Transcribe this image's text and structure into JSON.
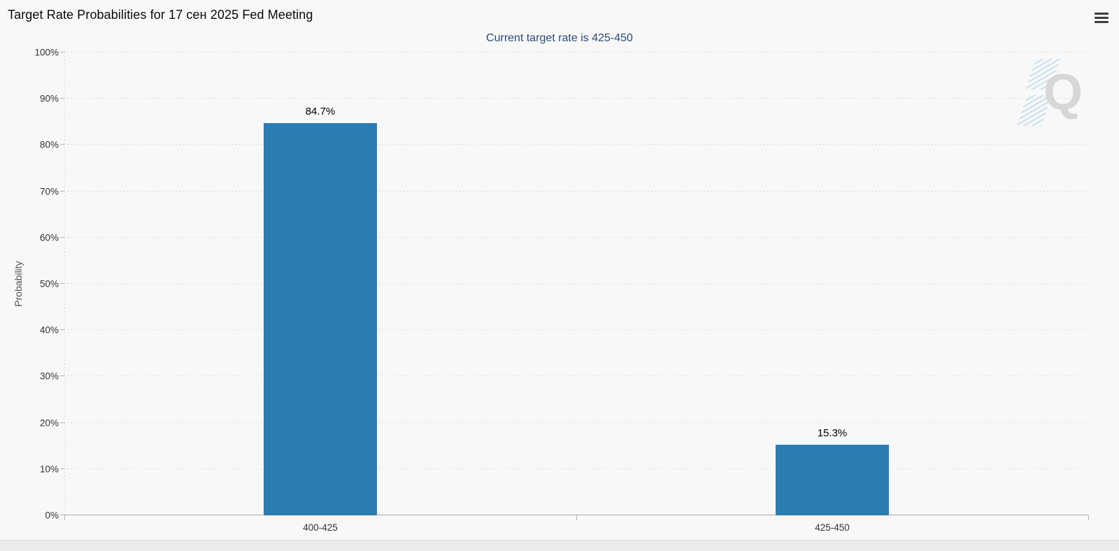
{
  "menu": {
    "icon": "hamburger"
  },
  "watermark": {
    "letter": "Q"
  },
  "chart_data": {
    "type": "bar",
    "title": "Target Rate Probabilities for 17 сен 2025 Fed Meeting",
    "subtitle": "Current target rate is 425-450",
    "categories": [
      "400-425",
      "425-450"
    ],
    "values": [
      84.7,
      15.3
    ],
    "value_labels": [
      "84.7%",
      "15.3%"
    ],
    "xlabel": "",
    "ylabel": "Probability",
    "ylim": [
      0,
      100
    ],
    "ytick_step": 10,
    "ytick_suffix": "%",
    "ytick_labels": [
      "0%",
      "10%",
      "20%",
      "30%",
      "40%",
      "50%",
      "60%",
      "70%",
      "80%",
      "90%",
      "100%"
    ],
    "grid": "horizontal-dotted",
    "legend": "none",
    "bar_color": "#2e7cb4"
  },
  "colors": {
    "bar": "#2e7cb4",
    "subtitle": "#2a4a7b",
    "background": "#f8f8f8",
    "gridline": "#c8c8c8"
  }
}
